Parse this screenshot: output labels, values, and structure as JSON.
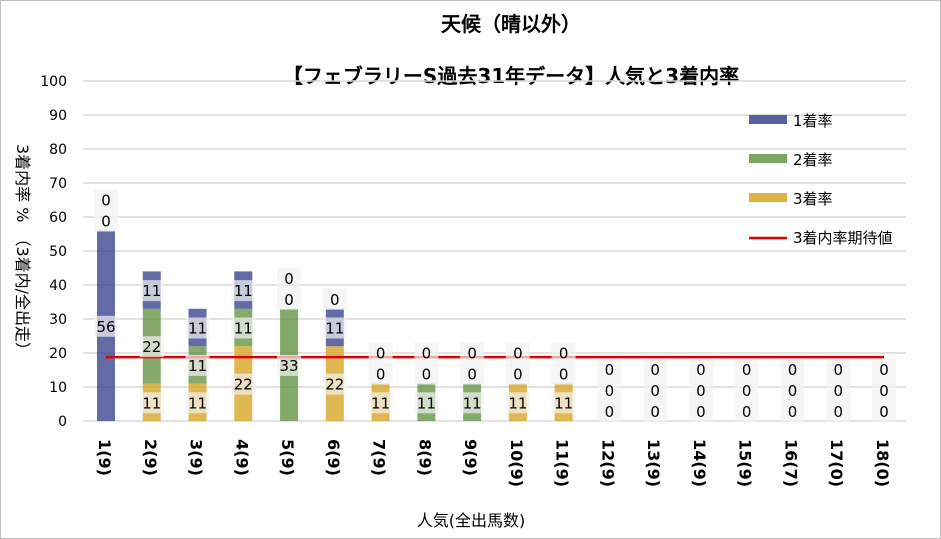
{
  "chart_data": {
    "type": "bar",
    "stacked": true,
    "title": "天候（晴以外）",
    "subtitle": "【フェブラリーS過去31年データ】人気と3着内率",
    "xlabel": "人気(全出馬数)",
    "ylabel": "3着内率 %　（3着内/全出走）",
    "ylim": [
      0,
      100
    ],
    "yticks": [
      0,
      10,
      20,
      30,
      40,
      50,
      60,
      70,
      80,
      90,
      100
    ],
    "grid": true,
    "legend_position": "right",
    "categories": [
      "1(9)",
      "2(9)",
      "3(9)",
      "4(9)",
      "5(9)",
      "6(9)",
      "7(9)",
      "8(9)",
      "9(9)",
      "10(9)",
      "11(9)",
      "12(9)",
      "13(9)",
      "14(9)",
      "15(9)",
      "16(7)",
      "17(0)",
      "18(0)"
    ],
    "series": [
      {
        "name": "3着率",
        "color": "#d4a017",
        "values": [
          0,
          11,
          11,
          22,
          0,
          22,
          11,
          0,
          0,
          11,
          11,
          0,
          0,
          0,
          0,
          0,
          0,
          0
        ]
      },
      {
        "name": "2着率",
        "color": "#5b8f3a",
        "values": [
          0,
          22,
          11,
          11,
          33,
          0,
          0,
          11,
          11,
          0,
          0,
          0,
          0,
          0,
          0,
          0,
          0,
          0
        ]
      },
      {
        "name": "1着率",
        "color": "#2e3a87",
        "values": [
          56,
          11,
          11,
          11,
          0,
          11,
          0,
          0,
          0,
          0,
          0,
          0,
          0,
          0,
          0,
          0,
          0,
          0
        ]
      }
    ],
    "expected": {
      "name": "3着内率期待値",
      "color": "#e00000",
      "value": 18.8
    }
  }
}
